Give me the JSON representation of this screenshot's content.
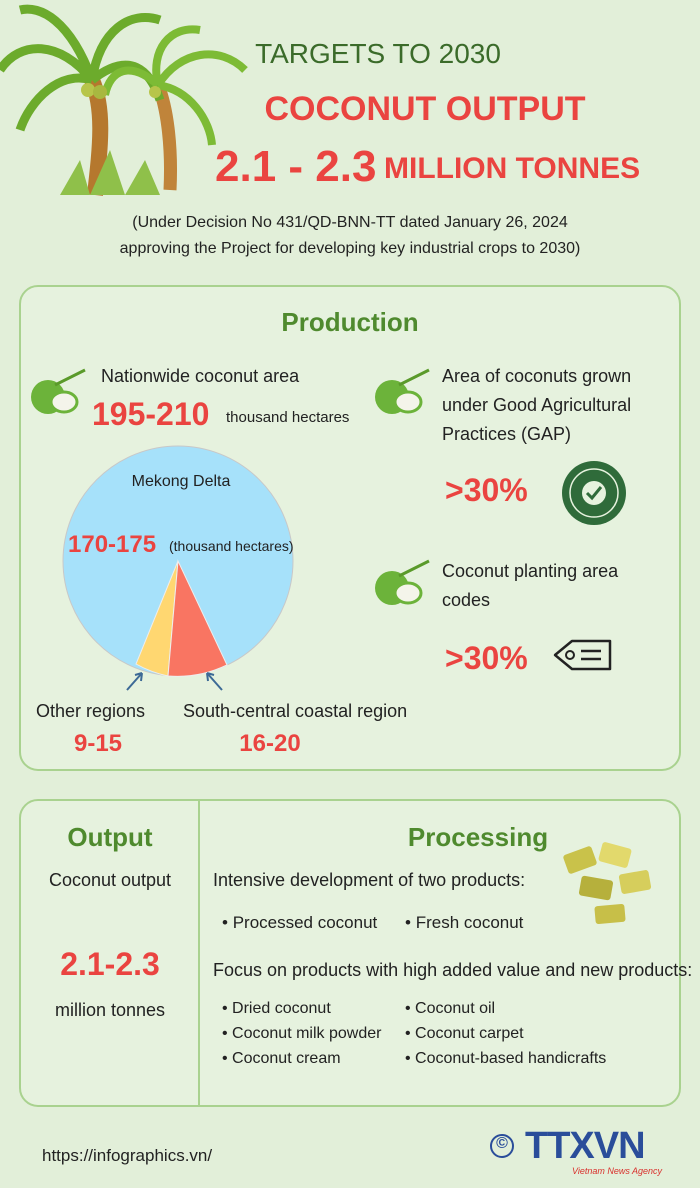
{
  "header": {
    "subtitle": "TARGETS TO 2030",
    "title": "COCONUT OUTPUT",
    "target_value": "2.1 - 2.3",
    "target_unit": "MILLION TONNES",
    "note_lines": [
      "(Under Decision No 431/QD-BNN-TT dated January 26, 2024",
      "approving the Project for developing key industrial crops to 2030)"
    ]
  },
  "production": {
    "title": "Production",
    "area": {
      "label": "Nationwide coconut area",
      "value": "195-210",
      "unit": "thousand hectares"
    },
    "pie": {
      "mekong": {
        "label": "Mekong Delta",
        "value": "170-175",
        "unit": "(thousand hectares)"
      },
      "other": {
        "label": "Other regions",
        "value": "9-15"
      },
      "south": {
        "label": "South-central coastal region",
        "value": "16-20"
      }
    },
    "gap": {
      "lines": [
        "Area of coconuts grown",
        "under Good Agricultural",
        "Practices (GAP)"
      ],
      "value": ">30%"
    },
    "codes": {
      "lines": [
        "Coconut planting area",
        "codes"
      ],
      "value": ">30%"
    }
  },
  "output": {
    "title": "Output",
    "label": "Coconut output",
    "value": "2.1-2.3",
    "unit": "million tonnes"
  },
  "processing": {
    "title": "Processing",
    "intro1": "Intensive development of two products:",
    "products1": [
      "Processed coconut",
      "Fresh coconut"
    ],
    "intro2": "Focus on products with high added value and new products:",
    "products2": [
      "Dried coconut",
      "Coconut milk powder",
      "Coconut cream",
      "Coconut oil",
      "Coconut carpet",
      "Coconut-based handicrafts"
    ]
  },
  "footer": {
    "url": "https://infographics.vn/",
    "copyright": "©",
    "logo": "TTXVN",
    "agency": "Vietnam News Agency"
  }
}
